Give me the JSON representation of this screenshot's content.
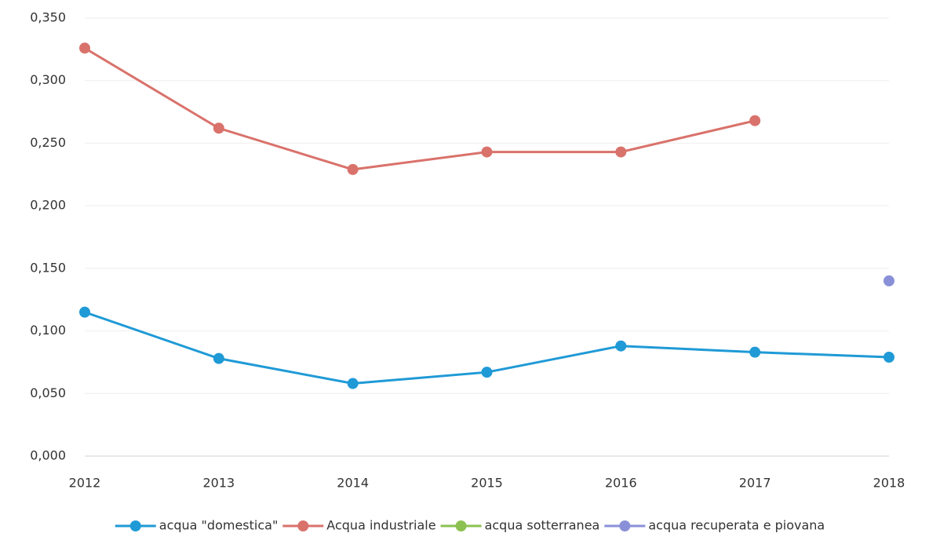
{
  "chart_data": {
    "type": "line",
    "categories": [
      "2012",
      "2013",
      "2014",
      "2015",
      "2016",
      "2017",
      "2018"
    ],
    "series": [
      {
        "name": "acqua \"domestica\"",
        "color": "#1f9ad6",
        "values": [
          0.115,
          0.078,
          0.058,
          0.067,
          0.088,
          0.083,
          0.079
        ]
      },
      {
        "name": "Acqua industriale",
        "color": "#d9726b",
        "values": [
          0.326,
          0.262,
          0.229,
          0.243,
          0.243,
          0.268,
          null
        ]
      },
      {
        "name": "acqua sotterranea",
        "color": "#8cc152",
        "values": [
          null,
          null,
          null,
          null,
          null,
          null,
          null
        ]
      },
      {
        "name": "acqua recuperata e piovana",
        "color": "#8a90d8",
        "values": [
          null,
          null,
          null,
          null,
          null,
          null,
          0.14
        ]
      }
    ],
    "ylim": [
      0,
      0.35
    ],
    "yticks": [
      {
        "value": 0,
        "label": "0,000"
      },
      {
        "value": 0.05,
        "label": "0,050"
      },
      {
        "value": 0.1,
        "label": "0,100"
      },
      {
        "value": 0.15,
        "label": "0,150"
      },
      {
        "value": 0.2,
        "label": "0,200"
      },
      {
        "value": 0.25,
        "label": "0,250"
      },
      {
        "value": 0.3,
        "label": "0,300"
      },
      {
        "value": 0.35,
        "label": "0,350"
      }
    ],
    "grid": true,
    "legend": "bottom"
  }
}
